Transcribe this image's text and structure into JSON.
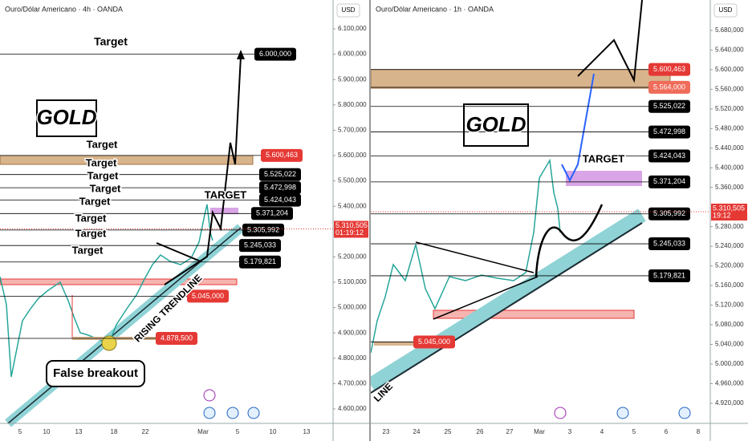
{
  "panels": [
    {
      "title": "Ouro/Dólar Americano · 4h · OANDA",
      "currency": "USD",
      "ylim": [
        4543,
        6214
      ],
      "yticks": [
        {
          "value": 6100,
          "label": "6.100,000"
        },
        {
          "value": 6000,
          "label": "6.000,000"
        },
        {
          "value": 5900,
          "label": "5.900,000"
        },
        {
          "value": 5800,
          "label": "5.800,000"
        },
        {
          "value": 5700,
          "label": "5.700,000"
        },
        {
          "value": 5600,
          "label": "5.600,000"
        },
        {
          "value": 5500,
          "label": "5.500,000"
        },
        {
          "value": 5400,
          "label": "5.400,000"
        },
        {
          "value": 5200,
          "label": "5.200,000"
        },
        {
          "value": 5100,
          "label": "5.100,000"
        },
        {
          "value": 5000,
          "label": "5.000,000"
        },
        {
          "value": 4900,
          "label": "4.900,000"
        },
        {
          "value": 4800,
          "label": "4.800,000"
        },
        {
          "value": 4700,
          "label": "4.700,000"
        },
        {
          "value": 4600,
          "label": "4.600,000"
        }
      ],
      "xticks": [
        "5",
        "10",
        "13",
        "18",
        "22",
        "Mar",
        "5",
        "10",
        "13"
      ],
      "levels": [
        {
          "value": 6000,
          "label": "6.000,000",
          "color": "#000000"
        },
        {
          "value": 5600.463,
          "label": "5.600,463",
          "color": "#e53935"
        },
        {
          "value": 5525.022,
          "label": "5.525,022",
          "color": "#000000"
        },
        {
          "value": 5472.998,
          "label": "5.472,998",
          "color": "#000000"
        },
        {
          "value": 5424.043,
          "label": "5.424,043",
          "color": "#000000"
        },
        {
          "value": 5371.204,
          "label": "5.371,204",
          "color": "#000000"
        },
        {
          "value": 5305.992,
          "label": "5.305,992",
          "color": "#000000"
        },
        {
          "value": 5245.033,
          "label": "5.245,033",
          "color": "#000000"
        },
        {
          "value": 5179.821,
          "label": "5.179,821",
          "color": "#000000"
        },
        {
          "value": 5045,
          "label": "5.045,000",
          "color": "#e53935"
        },
        {
          "value": 4878.5,
          "label": "4.878,500",
          "color": "#e53935"
        }
      ],
      "last_price": {
        "value": 5310.505,
        "label": "5.310,505",
        "timer": "01:19:12"
      },
      "annotations": [
        "Target",
        "GOLD",
        "Target",
        "Target",
        "Target",
        "Target",
        "Target",
        "Target",
        "Target",
        "Target",
        "TARGET",
        "RISING TRENDLINE",
        "False breakout"
      ]
    },
    {
      "title": "Ouro/Dólar Americano · 1h · OANDA",
      "currency": "USD",
      "ylim": [
        4879,
        5742
      ],
      "yticks": [
        {
          "value": 5680,
          "label": "5.680,000"
        },
        {
          "value": 5640,
          "label": "5.640,000"
        },
        {
          "value": 5600,
          "label": "5.600,000"
        },
        {
          "value": 5560,
          "label": "5.560,000"
        },
        {
          "value": 5520,
          "label": "5.520,000"
        },
        {
          "value": 5480,
          "label": "5.480,000"
        },
        {
          "value": 5440,
          "label": "5.440,000"
        },
        {
          "value": 5400,
          "label": "5.400,000"
        },
        {
          "value": 5360,
          "label": "5.360,000"
        },
        {
          "value": 5280,
          "label": "5.280,000"
        },
        {
          "value": 5240,
          "label": "5.240,000"
        },
        {
          "value": 5200,
          "label": "5.200,000"
        },
        {
          "value": 5160,
          "label": "5.160,000"
        },
        {
          "value": 5120,
          "label": "5.120,000"
        },
        {
          "value": 5080,
          "label": "5.080,000"
        },
        {
          "value": 5040,
          "label": "5.040,000"
        },
        {
          "value": 5000,
          "label": "5.000,000"
        },
        {
          "value": 4960,
          "label": "4.960,000"
        },
        {
          "value": 4920,
          "label": "4.920,000"
        }
      ],
      "xticks": [
        "23",
        "24",
        "25",
        "26",
        "27",
        "Mar",
        "3",
        "4",
        "5",
        "6",
        "8"
      ],
      "levels": [
        {
          "value": 5600.463,
          "label": "5.600,463",
          "color": "#e53935"
        },
        {
          "value": 5564,
          "label": "5.564,000",
          "color": "#ef6c5a"
        },
        {
          "value": 5525.022,
          "label": "5.525,022",
          "color": "#000000"
        },
        {
          "value": 5472.998,
          "label": "5.472,998",
          "color": "#000000"
        },
        {
          "value": 5424.043,
          "label": "5.424,043",
          "color": "#000000"
        },
        {
          "value": 5371.204,
          "label": "5.371,204",
          "color": "#000000"
        },
        {
          "value": 5305.992,
          "label": "5.305,992",
          "color": "#000000"
        },
        {
          "value": 5245.033,
          "label": "5.245,033",
          "color": "#000000"
        },
        {
          "value": 5179.821,
          "label": "5.179,821",
          "color": "#000000"
        },
        {
          "value": 5045,
          "label": "5.045,000",
          "color": "#e53935"
        }
      ],
      "last_price": {
        "value": 5310.505,
        "label": "5.310,505",
        "timer": "19:12"
      },
      "annotations": [
        "GOLD",
        "TARGET",
        "LINE"
      ]
    }
  ]
}
